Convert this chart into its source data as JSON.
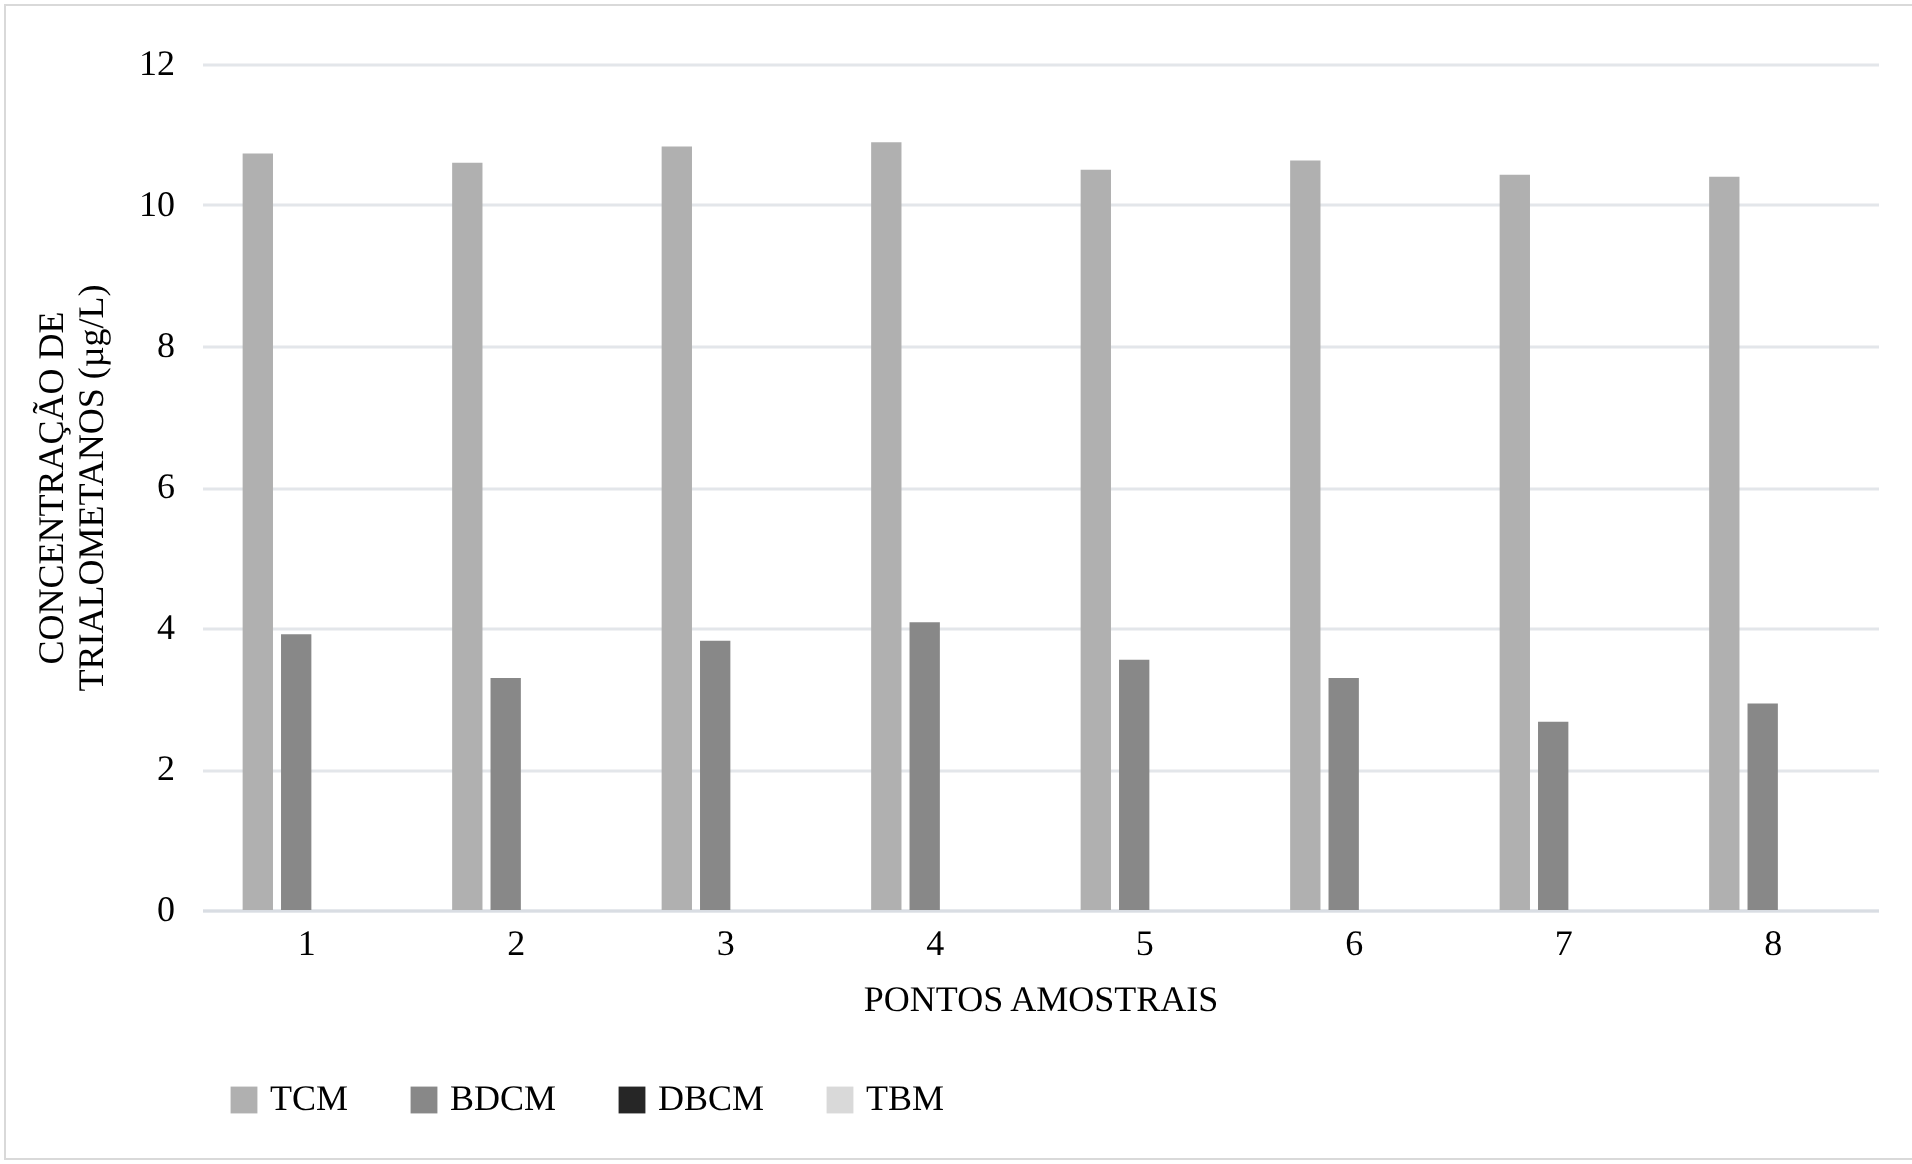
{
  "chart_data": {
    "type": "bar",
    "xlabel": "PONTOS AMOSTRAIS",
    "ylabel": "CONCENTRAÇÃO DE\nTRIALOMETANOS (µg/L)",
    "categories": [
      "1",
      "2",
      "3",
      "4",
      "5",
      "6",
      "7",
      "8"
    ],
    "series": [
      {
        "name": "TCM",
        "color": "#b0b0b0",
        "values": [
          10.73,
          10.6,
          10.83,
          10.89,
          10.5,
          10.63,
          10.43,
          10.4
        ]
      },
      {
        "name": "BDCM",
        "color": "#888888",
        "values": [
          3.91,
          3.29,
          3.82,
          4.08,
          3.55,
          3.29,
          2.67,
          2.93
        ]
      },
      {
        "name": "DBCM",
        "color": "#262626",
        "values": [
          0,
          0,
          0,
          0,
          0,
          0,
          0,
          0
        ]
      },
      {
        "name": "TBM",
        "color": "#d9d9d9",
        "values": [
          0,
          0,
          0,
          0,
          0,
          0,
          0,
          0
        ]
      }
    ],
    "ylim": [
      0,
      12
    ],
    "yticks": [
      0,
      2,
      4,
      6,
      8,
      10,
      12
    ],
    "grid": "y",
    "legend": "bottom"
  }
}
